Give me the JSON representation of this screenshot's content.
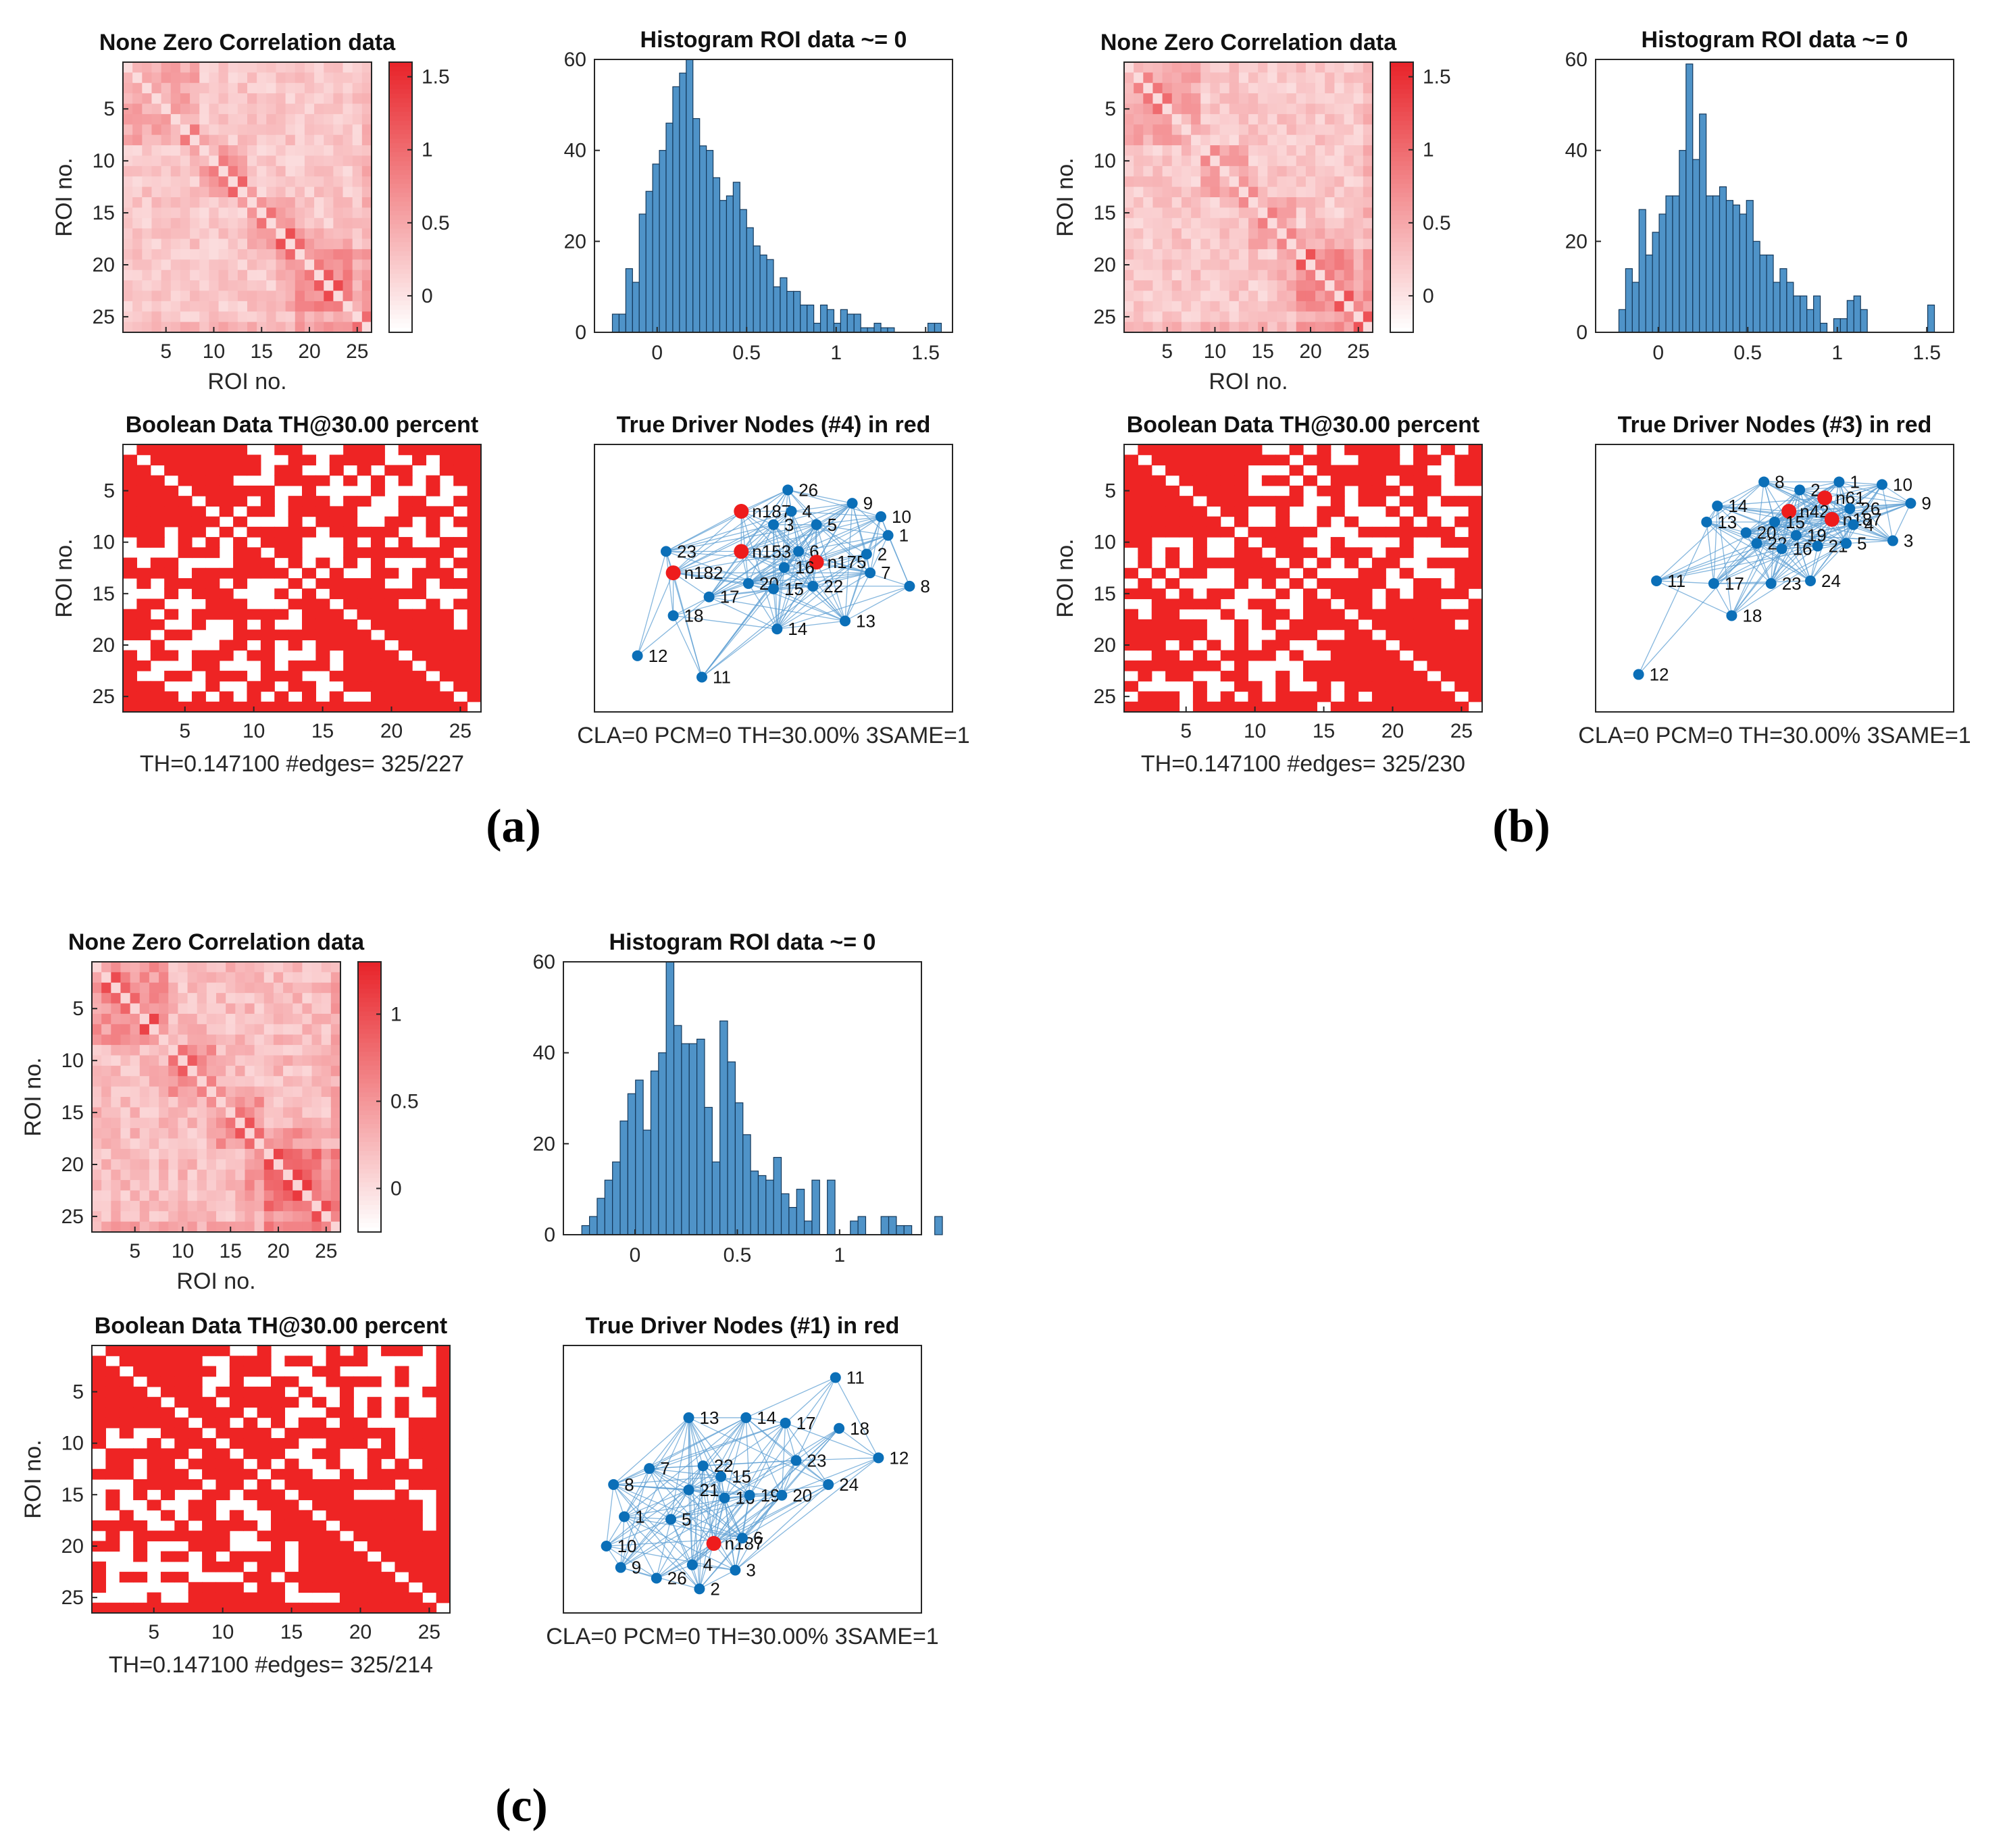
{
  "colors": {
    "heat_low": "#ffffff",
    "heat_high": "#e8252b",
    "bool_on": "#ee2424",
    "bar_fill": "#4f93c8",
    "bar_edge": "#14385a",
    "node": "#0b6fb8",
    "driver": "#ee1c1c",
    "edge": "#5d9fd3"
  },
  "chart_data": [
    {
      "panel": "(a)",
      "correlation": {
        "type": "heatmap",
        "title": "None Zero Correlation data",
        "xlabel": "ROI no.",
        "ylabel": "ROI no.",
        "size": 26,
        "xticks": [
          5,
          10,
          15,
          20,
          25
        ],
        "yticks": [
          5,
          10,
          15,
          20,
          25
        ],
        "colorbar": {
          "min": -0.25,
          "max": 1.6,
          "ticks": [
            0,
            0.5,
            1,
            1.5
          ],
          "tick_labels": [
            "0",
            "0.5",
            "1",
            "1.5"
          ]
        },
        "seed": 11
      },
      "histogram": {
        "type": "bar",
        "title": "Histogram ROI data ~= 0",
        "bin_start": -0.25,
        "bin_width": 0.0375,
        "counts": [
          4,
          4,
          14,
          11,
          26,
          31,
          37,
          40,
          46,
          54,
          57,
          62,
          47,
          41,
          40,
          34,
          29,
          30,
          33,
          27,
          23,
          19,
          17,
          16,
          10,
          12,
          9,
          9,
          6,
          6,
          2,
          6,
          5,
          2,
          5,
          4,
          4,
          1,
          1,
          2,
          1,
          1,
          0,
          0,
          0,
          0,
          0,
          2,
          2
        ],
        "xlim": [
          -0.35,
          1.65
        ],
        "ylim": [
          0,
          60
        ],
        "xticks": [
          0,
          0.5,
          1,
          1.5
        ],
        "xtick_labels": [
          "0",
          "0.5",
          "1",
          "1.5"
        ],
        "yticks": [
          0,
          20,
          40,
          60
        ]
      },
      "boolean": {
        "type": "heatmap",
        "title": "Boolean Data TH@30.00 percent",
        "ylabel": "ROI no.",
        "xticks": [
          5,
          10,
          15,
          20,
          25
        ],
        "yticks": [
          5,
          10,
          15,
          20,
          25
        ],
        "caption": "TH=0.147100 #edges= 325/227",
        "seed": 21
      },
      "network": {
        "type": "scatter",
        "title": "True Driver Nodes (#4) in red",
        "caption": "CLA=0 PCM=0 TH=30.00% 3SAME=1",
        "nodes": [
          {
            "label": "26",
            "x": 0.54,
            "y": 0.17,
            "driver": false
          },
          {
            "label": "9",
            "x": 0.72,
            "y": 0.22,
            "driver": false
          },
          {
            "label": "10",
            "x": 0.8,
            "y": 0.27,
            "driver": false
          },
          {
            "label": "n187",
            "x": 0.41,
            "y": 0.25,
            "driver": true
          },
          {
            "label": "4",
            "x": 0.55,
            "y": 0.25,
            "driver": false
          },
          {
            "label": "5",
            "x": 0.62,
            "y": 0.3,
            "driver": false
          },
          {
            "label": "3",
            "x": 0.5,
            "y": 0.3,
            "driver": false
          },
          {
            "label": "1",
            "x": 0.82,
            "y": 0.34,
            "driver": false
          },
          {
            "label": "23",
            "x": 0.2,
            "y": 0.4,
            "driver": false
          },
          {
            "label": "n153",
            "x": 0.41,
            "y": 0.4,
            "driver": true
          },
          {
            "label": "6",
            "x": 0.57,
            "y": 0.4,
            "driver": false
          },
          {
            "label": "n175",
            "x": 0.62,
            "y": 0.44,
            "driver": true
          },
          {
            "label": "2",
            "x": 0.76,
            "y": 0.41,
            "driver": false
          },
          {
            "label": "16",
            "x": 0.53,
            "y": 0.46,
            "driver": false
          },
          {
            "label": "n182",
            "x": 0.22,
            "y": 0.48,
            "driver": true
          },
          {
            "label": "7",
            "x": 0.77,
            "y": 0.48,
            "driver": false
          },
          {
            "label": "20",
            "x": 0.43,
            "y": 0.52,
            "driver": false
          },
          {
            "label": "15",
            "x": 0.5,
            "y": 0.54,
            "driver": false
          },
          {
            "label": "22",
            "x": 0.61,
            "y": 0.53,
            "driver": false
          },
          {
            "label": "8",
            "x": 0.88,
            "y": 0.53,
            "driver": false
          },
          {
            "label": "17",
            "x": 0.32,
            "y": 0.57,
            "driver": false
          },
          {
            "label": "18",
            "x": 0.22,
            "y": 0.64,
            "driver": false
          },
          {
            "label": "13",
            "x": 0.7,
            "y": 0.66,
            "driver": false
          },
          {
            "label": "14",
            "x": 0.51,
            "y": 0.69,
            "driver": false
          },
          {
            "label": "12",
            "x": 0.12,
            "y": 0.79,
            "driver": false
          },
          {
            "label": "11",
            "x": 0.3,
            "y": 0.87,
            "driver": false
          }
        ],
        "seed": 31
      }
    },
    {
      "panel": "(b)",
      "correlation": {
        "type": "heatmap",
        "title": "None Zero Correlation data",
        "xlabel": "ROI no.",
        "ylabel": "ROI no.",
        "size": 26,
        "xticks": [
          5,
          10,
          15,
          20,
          25
        ],
        "yticks": [
          5,
          10,
          15,
          20,
          25
        ],
        "colorbar": {
          "min": -0.25,
          "max": 1.6,
          "ticks": [
            0,
            0.5,
            1,
            1.5
          ],
          "tick_labels": [
            "0",
            "0.5",
            "1",
            "1.5"
          ]
        },
        "seed": 12
      },
      "histogram": {
        "type": "bar",
        "title": "Histogram ROI data ~= 0",
        "bin_start": -0.22,
        "bin_width": 0.0375,
        "counts": [
          5,
          14,
          11,
          27,
          17,
          22,
          26,
          30,
          30,
          40,
          59,
          38,
          48,
          30,
          30,
          32,
          29,
          28,
          26,
          29,
          20,
          17,
          17,
          11,
          14,
          11,
          8,
          8,
          5,
          8,
          2,
          0,
          3,
          3,
          7,
          8,
          5,
          0,
          0,
          0,
          0,
          0,
          0,
          0,
          0,
          0,
          6
        ],
        "xlim": [
          -0.35,
          1.65
        ],
        "ylim": [
          0,
          60
        ],
        "xticks": [
          0,
          0.5,
          1,
          1.5
        ],
        "xtick_labels": [
          "0",
          "0.5",
          "1",
          "1.5"
        ],
        "yticks": [
          0,
          20,
          40,
          60
        ]
      },
      "boolean": {
        "type": "heatmap",
        "title": "Boolean Data TH@30.00 percent",
        "ylabel": "ROI no.",
        "xticks": [
          5,
          10,
          15,
          20,
          25
        ],
        "yticks": [
          5,
          10,
          15,
          20,
          25
        ],
        "caption": "TH=0.147100 #edges= 325/230",
        "seed": 22
      },
      "network": {
        "type": "scatter",
        "title": "True Driver Nodes (#3) in red",
        "caption": "CLA=0 PCM=0 TH=30.00% 3SAME=1",
        "nodes": [
          {
            "label": "8",
            "x": 0.47,
            "y": 0.14,
            "driver": false
          },
          {
            "label": "2",
            "x": 0.57,
            "y": 0.17,
            "driver": false
          },
          {
            "label": "1",
            "x": 0.68,
            "y": 0.14,
            "driver": false
          },
          {
            "label": "10",
            "x": 0.8,
            "y": 0.15,
            "driver": false
          },
          {
            "label": "n61",
            "x": 0.64,
            "y": 0.2,
            "driver": true
          },
          {
            "label": "9",
            "x": 0.88,
            "y": 0.22,
            "driver": false
          },
          {
            "label": "14",
            "x": 0.34,
            "y": 0.23,
            "driver": false
          },
          {
            "label": "26",
            "x": 0.71,
            "y": 0.24,
            "driver": false
          },
          {
            "label": "n42",
            "x": 0.54,
            "y": 0.25,
            "driver": true
          },
          {
            "label": "n187",
            "x": 0.66,
            "y": 0.28,
            "driver": true
          },
          {
            "label": "4",
            "x": 0.72,
            "y": 0.3,
            "driver": false
          },
          {
            "label": "13",
            "x": 0.31,
            "y": 0.29,
            "driver": false
          },
          {
            "label": "15",
            "x": 0.5,
            "y": 0.29,
            "driver": false
          },
          {
            "label": "20",
            "x": 0.42,
            "y": 0.33,
            "driver": false
          },
          {
            "label": "19",
            "x": 0.56,
            "y": 0.34,
            "driver": false
          },
          {
            "label": "3",
            "x": 0.83,
            "y": 0.36,
            "driver": false
          },
          {
            "label": "22",
            "x": 0.45,
            "y": 0.37,
            "driver": false
          },
          {
            "label": "16",
            "x": 0.52,
            "y": 0.39,
            "driver": false
          },
          {
            "label": "21",
            "x": 0.62,
            "y": 0.38,
            "driver": false
          },
          {
            "label": "5",
            "x": 0.7,
            "y": 0.37,
            "driver": false
          },
          {
            "label": "11",
            "x": 0.17,
            "y": 0.51,
            "driver": false
          },
          {
            "label": "17",
            "x": 0.33,
            "y": 0.52,
            "driver": false
          },
          {
            "label": "23",
            "x": 0.49,
            "y": 0.52,
            "driver": false
          },
          {
            "label": "24",
            "x": 0.6,
            "y": 0.51,
            "driver": false
          },
          {
            "label": "18",
            "x": 0.38,
            "y": 0.64,
            "driver": false
          },
          {
            "label": "12",
            "x": 0.12,
            "y": 0.86,
            "driver": false
          }
        ],
        "seed": 32
      }
    },
    {
      "panel": "(c)",
      "correlation": {
        "type": "heatmap",
        "title": "None Zero Correlation data",
        "xlabel": "ROI no.",
        "ylabel": "ROI no.",
        "size": 26,
        "xticks": [
          5,
          10,
          15,
          20,
          25
        ],
        "yticks": [
          5,
          10,
          15,
          20,
          25
        ],
        "colorbar": {
          "min": -0.25,
          "max": 1.3,
          "ticks": [
            0,
            0.5,
            1
          ],
          "tick_labels": [
            "0",
            "0.5",
            "1"
          ]
        },
        "seed": 13
      },
      "histogram": {
        "type": "bar",
        "title": "Histogram ROI data ~= 0",
        "bin_start": -0.26,
        "bin_width": 0.0375,
        "counts": [
          2,
          4,
          8,
          12,
          16,
          25,
          31,
          34,
          23,
          36,
          40,
          60,
          46,
          42,
          42,
          43,
          28,
          16,
          47,
          38,
          29,
          22,
          14,
          13,
          12,
          17,
          9,
          6,
          10,
          3,
          12,
          0,
          12,
          0,
          0,
          3,
          4,
          0,
          0,
          4,
          4,
          2,
          2,
          0,
          0,
          0,
          4
        ],
        "xlim": [
          -0.35,
          1.4
        ],
        "ylim": [
          0,
          60
        ],
        "xticks": [
          0,
          0.5,
          1
        ],
        "xtick_labels": [
          "0",
          "0.5",
          "1"
        ],
        "yticks": [
          0,
          20,
          40,
          60
        ]
      },
      "boolean": {
        "type": "heatmap",
        "title": "Boolean Data TH@30.00 percent",
        "ylabel": "ROI no.",
        "xticks": [
          5,
          10,
          15,
          20,
          25
        ],
        "yticks": [
          5,
          10,
          15,
          20,
          25
        ],
        "caption": "TH=0.147100 #edges= 325/214",
        "seed": 23
      },
      "network": {
        "type": "scatter",
        "title": "True Driver Nodes (#1) in red",
        "caption": "CLA=0 PCM=0 TH=30.00% 3SAME=1",
        "nodes": [
          {
            "label": "11",
            "x": 0.76,
            "y": 0.12,
            "driver": false
          },
          {
            "label": "13",
            "x": 0.35,
            "y": 0.27,
            "driver": false
          },
          {
            "label": "14",
            "x": 0.51,
            "y": 0.27,
            "driver": false
          },
          {
            "label": "17",
            "x": 0.62,
            "y": 0.29,
            "driver": false
          },
          {
            "label": "18",
            "x": 0.77,
            "y": 0.31,
            "driver": false
          },
          {
            "label": "12",
            "x": 0.88,
            "y": 0.42,
            "driver": false
          },
          {
            "label": "23",
            "x": 0.65,
            "y": 0.43,
            "driver": false
          },
          {
            "label": "22",
            "x": 0.39,
            "y": 0.45,
            "driver": false
          },
          {
            "label": "7",
            "x": 0.24,
            "y": 0.46,
            "driver": false
          },
          {
            "label": "15",
            "x": 0.44,
            "y": 0.49,
            "driver": false
          },
          {
            "label": "8",
            "x": 0.14,
            "y": 0.52,
            "driver": false
          },
          {
            "label": "24",
            "x": 0.74,
            "y": 0.52,
            "driver": false
          },
          {
            "label": "21",
            "x": 0.35,
            "y": 0.54,
            "driver": false
          },
          {
            "label": "16",
            "x": 0.45,
            "y": 0.57,
            "driver": false
          },
          {
            "label": "19",
            "x": 0.52,
            "y": 0.56,
            "driver": false
          },
          {
            "label": "20",
            "x": 0.61,
            "y": 0.56,
            "driver": false
          },
          {
            "label": "1",
            "x": 0.17,
            "y": 0.64,
            "driver": false
          },
          {
            "label": "5",
            "x": 0.3,
            "y": 0.65,
            "driver": false
          },
          {
            "label": "n187",
            "x": 0.42,
            "y": 0.74,
            "driver": true
          },
          {
            "label": "6",
            "x": 0.5,
            "y": 0.72,
            "driver": false
          },
          {
            "label": "10",
            "x": 0.12,
            "y": 0.75,
            "driver": false
          },
          {
            "label": "9",
            "x": 0.16,
            "y": 0.83,
            "driver": false
          },
          {
            "label": "4",
            "x": 0.36,
            "y": 0.82,
            "driver": false
          },
          {
            "label": "3",
            "x": 0.48,
            "y": 0.84,
            "driver": false
          },
          {
            "label": "26",
            "x": 0.26,
            "y": 0.87,
            "driver": false
          },
          {
            "label": "2",
            "x": 0.38,
            "y": 0.91,
            "driver": false
          }
        ],
        "seed": 33
      }
    }
  ]
}
